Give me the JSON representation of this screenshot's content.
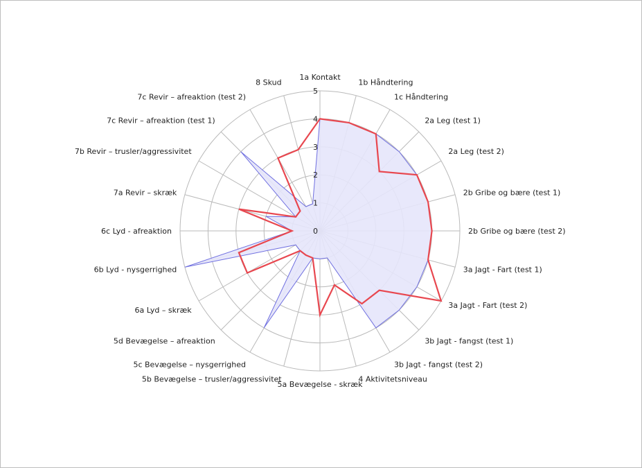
{
  "chart_data": {
    "type": "radar",
    "rmax": 5,
    "ticks": [
      "0",
      "1",
      "2",
      "3",
      "4",
      "5"
    ],
    "categories": [
      "1a Kontakt",
      "1b Håndtering",
      "1c Håndtering",
      "2a Leg (test 1)",
      "2a Leg (test 2)",
      "2b Gribe og bære (test 1)",
      "2b Gribe og bære (test 2)",
      "3a Jagt - Fart (test 1)",
      "3a Jagt - Fart (test 2)",
      "3b Jagt - fangst (test 1)",
      "3b Jagt - fangst (test 2)",
      "4 Aktivitetsniveau",
      "5a Bevægelse - skræk",
      "5b Bevægelse – trusler/aggressivitet",
      "5c Bevægelse – nysgerrighed",
      "5d Bevægelse – afreaktion",
      "6a Lyd – skræk",
      "6b Lyd - nysgerrighed",
      "6c Lyd - afreaktion",
      "7a Revir – skræk",
      "7b Revir – trusler/aggressivitet",
      "7c Revir – afreaktion (test 1)",
      "7c Revir – afreaktion (test 2)",
      "8 Skud"
    ],
    "series": [
      {
        "color": "#6f6fe0",
        "fill": "#e6e6fb",
        "values": [
          4,
          4,
          4,
          4,
          4,
          4,
          4,
          4,
          4,
          4,
          4,
          1,
          1,
          1,
          4,
          1,
          1,
          5,
          1,
          2,
          1,
          4,
          1,
          1
        ]
      },
      {
        "color": "#e8474f",
        "values": [
          4,
          4,
          4,
          3,
          4,
          4,
          4,
          4,
          5,
          3,
          3,
          2,
          3,
          1,
          1,
          1,
          3,
          3,
          1,
          3,
          1,
          1,
          3,
          3
        ]
      }
    ]
  }
}
